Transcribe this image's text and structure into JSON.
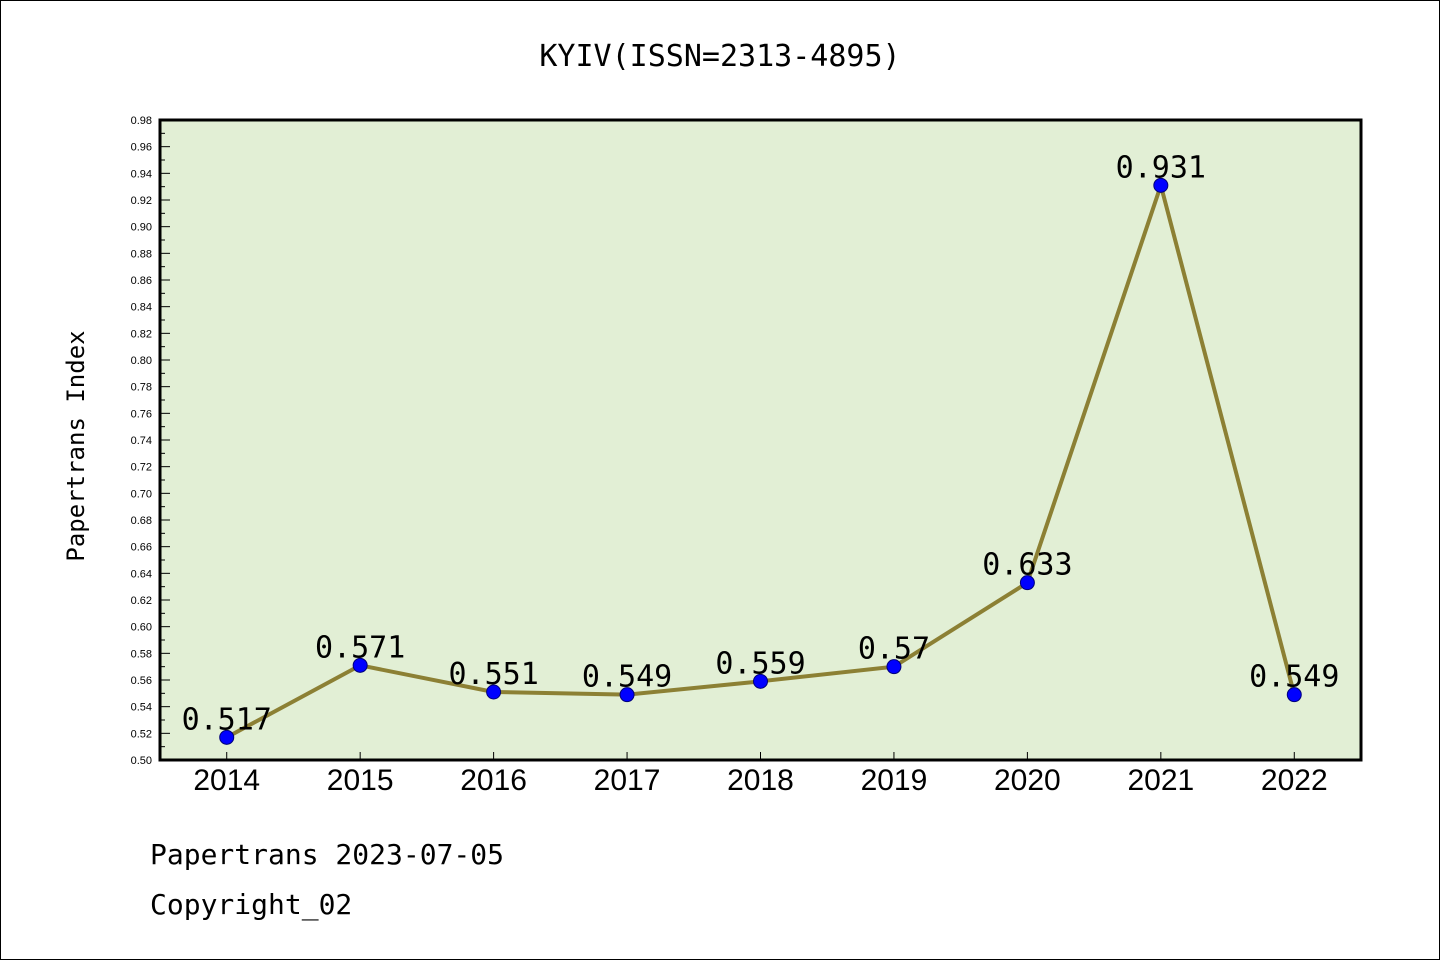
{
  "chart_data": {
    "type": "line",
    "title": "KYIV(ISSN=2313-4895)",
    "xlabel": "",
    "ylabel": "Papertrans Index",
    "categories": [
      "2014",
      "2015",
      "2016",
      "2017",
      "2018",
      "2019",
      "2020",
      "2021",
      "2022"
    ],
    "series": [
      {
        "values": [
          0.517,
          0.571,
          0.551,
          0.549,
          0.559,
          0.57,
          0.633,
          0.931,
          0.549
        ],
        "labels": [
          "0.517",
          "0.571",
          "0.551",
          "0.549",
          "0.559",
          "0.57",
          "0.633",
          "0.931",
          "0.549"
        ]
      }
    ],
    "ylim": [
      0.5,
      0.98
    ],
    "yticks": [
      "0.50",
      "0.52",
      "0.54",
      "0.56",
      "0.58",
      "0.60",
      "0.62",
      "0.64",
      "0.66",
      "0.68",
      "0.70",
      "0.72",
      "0.74",
      "0.76",
      "0.78",
      "0.80",
      "0.82",
      "0.84",
      "0.86",
      "0.88",
      "0.90",
      "0.92",
      "0.94",
      "0.96",
      "0.98"
    ],
    "grid": false,
    "colors": {
      "plot_background": "#e2efd5",
      "line": "#8c8034",
      "marker": "#0000ff"
    }
  },
  "footer": {
    "line1": "Papertrans 2023-07-05",
    "line2": "Copyright_02"
  }
}
